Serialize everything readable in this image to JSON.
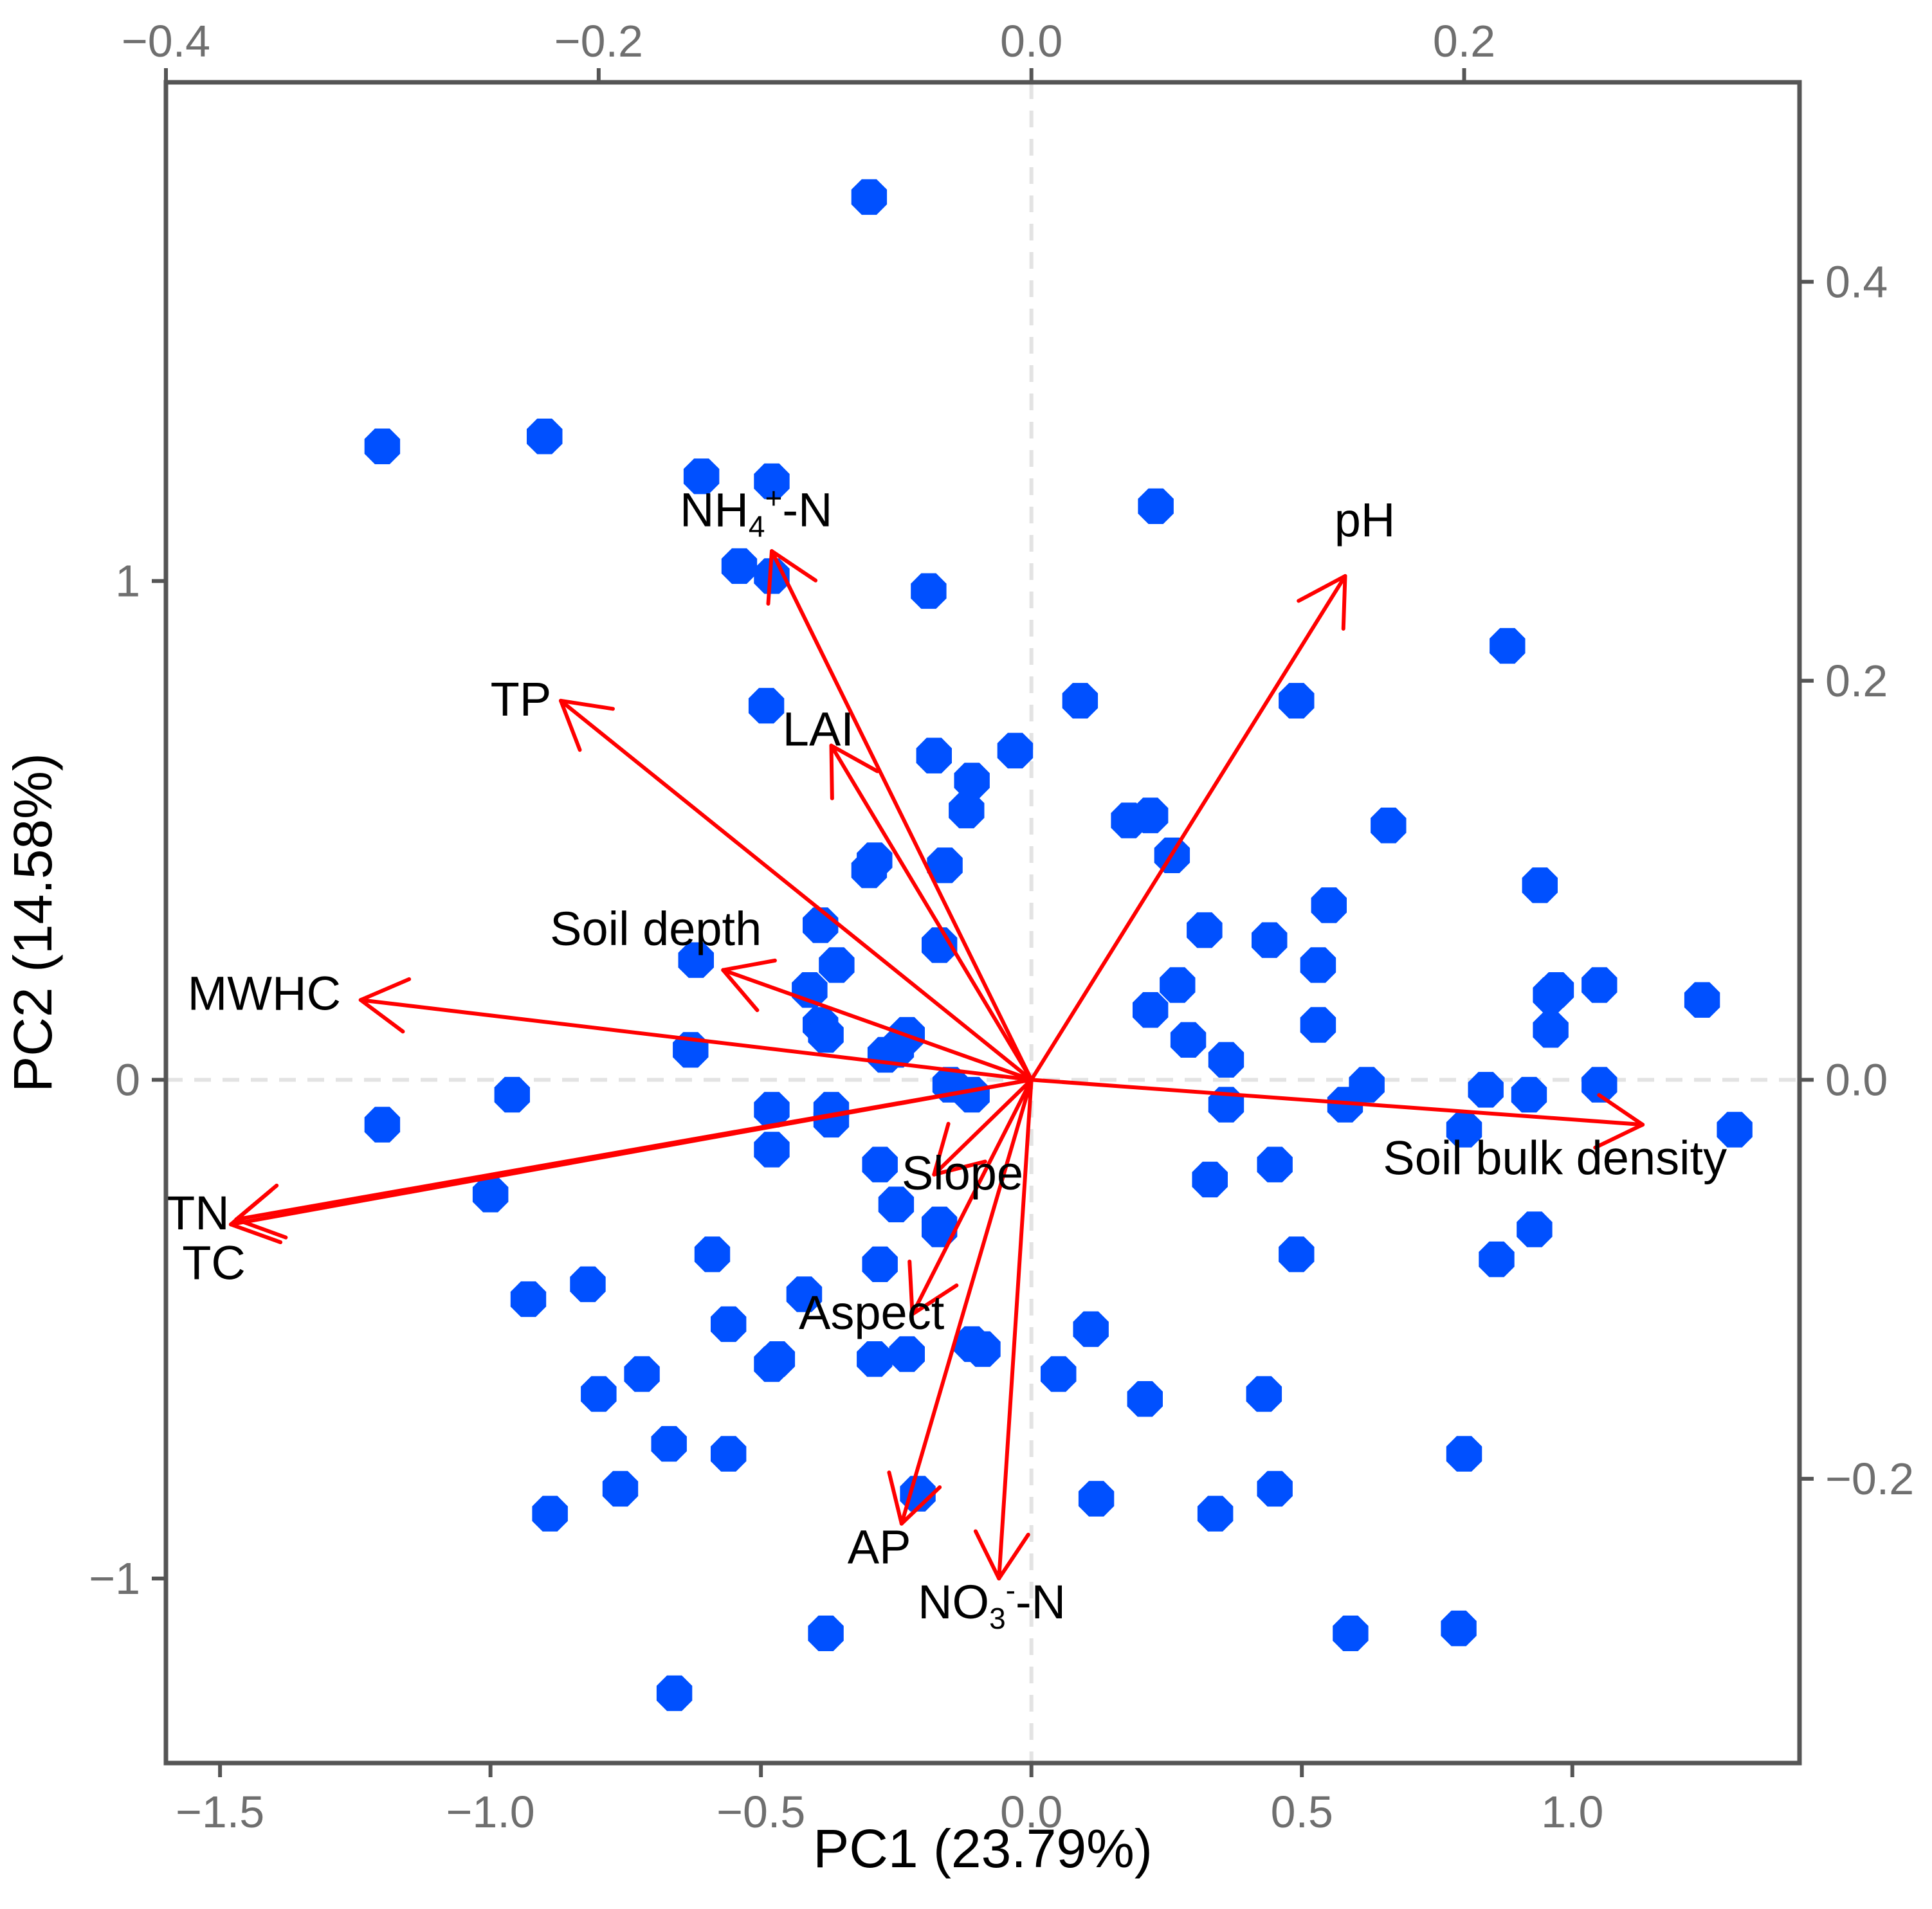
{
  "chart_data": {
    "type": "scatter",
    "subtype": "pca_biplot",
    "title": "",
    "xlabel": "PC1 (23.79%)",
    "ylabel": "PC2 (14.58%)",
    "xlim": [
      -1.6,
      1.42
    ],
    "ylim": [
      -1.37,
      2.0
    ],
    "x_ticks": [
      -1.5,
      -1.0,
      -0.5,
      0.0,
      0.5,
      1.0
    ],
    "x_tick_labels": [
      "−1.5",
      "−1.0",
      "−0.5",
      "0.0",
      "0.5",
      "1.0"
    ],
    "y_ticks": [
      -1,
      0,
      1
    ],
    "y_tick_labels": [
      "−1",
      "0",
      "1"
    ],
    "loading_axis": {
      "scale": 0.25,
      "top_ticks": [
        -0.4,
        -0.2,
        0.0,
        0.2
      ],
      "top_tick_labels": [
        "−0.4",
        "−0.2",
        "0.0",
        "0.2"
      ],
      "right_ticks": [
        -0.2,
        0.0,
        0.2,
        0.4
      ],
      "right_tick_labels": [
        "−0.2",
        "0.0",
        "0.2",
        "0.4"
      ]
    },
    "grid": false,
    "reference_lines": [
      "x=0",
      "y=0"
    ],
    "colors": {
      "points": "#0050ff",
      "arrows": "#ff0000",
      "frame": "#555555",
      "reference": "#e3e3e3",
      "ticks": "#6f6f6f"
    },
    "points": [
      {
        "x": -0.3,
        "y": 1.77
      },
      {
        "x": -1.2,
        "y": 1.27
      },
      {
        "x": -0.9,
        "y": 1.29
      },
      {
        "x": -0.61,
        "y": 1.21
      },
      {
        "x": -0.48,
        "y": 1.2
      },
      {
        "x": 0.23,
        "y": 1.15
      },
      {
        "x": -0.54,
        "y": 1.03
      },
      {
        "x": -0.48,
        "y": 1.01
      },
      {
        "x": -0.19,
        "y": 0.98
      },
      {
        "x": 0.88,
        "y": 0.87
      },
      {
        "x": -0.49,
        "y": 0.75
      },
      {
        "x": 0.09,
        "y": 0.76
      },
      {
        "x": 0.49,
        "y": 0.76
      },
      {
        "x": -0.18,
        "y": 0.65
      },
      {
        "x": -0.03,
        "y": 0.66
      },
      {
        "x": -0.11,
        "y": 0.6
      },
      {
        "x": -0.12,
        "y": 0.54
      },
      {
        "x": 0.18,
        "y": 0.52
      },
      {
        "x": 0.22,
        "y": 0.53
      },
      {
        "x": 0.66,
        "y": 0.51
      },
      {
        "x": 0.26,
        "y": 0.45
      },
      {
        "x": -0.29,
        "y": 0.44
      },
      {
        "x": -0.3,
        "y": 0.42
      },
      {
        "x": -0.16,
        "y": 0.43
      },
      {
        "x": 0.94,
        "y": 0.39
      },
      {
        "x": 0.55,
        "y": 0.35
      },
      {
        "x": -0.39,
        "y": 0.31
      },
      {
        "x": 0.32,
        "y": 0.3
      },
      {
        "x": 0.44,
        "y": 0.28
      },
      {
        "x": -0.17,
        "y": 0.27
      },
      {
        "x": -0.62,
        "y": 0.24
      },
      {
        "x": -0.36,
        "y": 0.23
      },
      {
        "x": 0.53,
        "y": 0.23
      },
      {
        "x": 0.27,
        "y": 0.19
      },
      {
        "x": 0.97,
        "y": 0.18
      },
      {
        "x": 0.96,
        "y": 0.17
      },
      {
        "x": 1.05,
        "y": 0.19
      },
      {
        "x": 1.24,
        "y": 0.16
      },
      {
        "x": -0.41,
        "y": 0.18
      },
      {
        "x": 0.22,
        "y": 0.14
      },
      {
        "x": -0.39,
        "y": 0.11
      },
      {
        "x": -0.38,
        "y": 0.09
      },
      {
        "x": 0.53,
        "y": 0.11
      },
      {
        "x": 0.96,
        "y": 0.1
      },
      {
        "x": -0.23,
        "y": 0.09
      },
      {
        "x": 0.29,
        "y": 0.08
      },
      {
        "x": -0.63,
        "y": 0.06
      },
      {
        "x": -0.27,
        "y": 0.05
      },
      {
        "x": -0.25,
        "y": 0.06
      },
      {
        "x": 0.36,
        "y": 0.04
      },
      {
        "x": -0.96,
        "y": -0.03
      },
      {
        "x": -0.15,
        "y": -0.01
      },
      {
        "x": -0.11,
        "y": -0.03
      },
      {
        "x": 0.62,
        "y": -0.01
      },
      {
        "x": 0.58,
        "y": -0.05
      },
      {
        "x": 0.84,
        "y": -0.02
      },
      {
        "x": 0.92,
        "y": -0.03
      },
      {
        "x": 1.05,
        "y": -0.01
      },
      {
        "x": 0.36,
        "y": -0.05
      },
      {
        "x": -1.2,
        "y": -0.09
      },
      {
        "x": -0.48,
        "y": -0.06
      },
      {
        "x": -0.37,
        "y": -0.06
      },
      {
        "x": -0.37,
        "y": -0.08
      },
      {
        "x": 0.8,
        "y": -0.1
      },
      {
        "x": 1.3,
        "y": -0.1
      },
      {
        "x": -0.48,
        "y": -0.14
      },
      {
        "x": -0.28,
        "y": -0.17
      },
      {
        "x": 0.45,
        "y": -0.17
      },
      {
        "x": 0.33,
        "y": -0.2
      },
      {
        "x": -1.0,
        "y": -0.23
      },
      {
        "x": -0.25,
        "y": -0.25
      },
      {
        "x": -0.17,
        "y": -0.29
      },
      {
        "x": -0.17,
        "y": -0.3
      },
      {
        "x": 0.93,
        "y": -0.3
      },
      {
        "x": -0.59,
        "y": -0.35
      },
      {
        "x": 0.49,
        "y": -0.35
      },
      {
        "x": 0.86,
        "y": -0.36
      },
      {
        "x": -0.28,
        "y": -0.37
      },
      {
        "x": -0.82,
        "y": -0.41
      },
      {
        "x": -0.93,
        "y": -0.44
      },
      {
        "x": -0.42,
        "y": -0.43
      },
      {
        "x": -0.56,
        "y": -0.49
      },
      {
        "x": 0.11,
        "y": -0.5
      },
      {
        "x": -0.11,
        "y": -0.53
      },
      {
        "x": -0.09,
        "y": -0.54
      },
      {
        "x": -0.29,
        "y": -0.56
      },
      {
        "x": -0.23,
        "y": -0.55
      },
      {
        "x": -0.48,
        "y": -0.57
      },
      {
        "x": -0.47,
        "y": -0.56
      },
      {
        "x": 0.05,
        "y": -0.59
      },
      {
        "x": -0.72,
        "y": -0.59
      },
      {
        "x": -0.8,
        "y": -0.63
      },
      {
        "x": 0.21,
        "y": -0.64
      },
      {
        "x": 0.43,
        "y": -0.63
      },
      {
        "x": -0.67,
        "y": -0.73
      },
      {
        "x": -0.56,
        "y": -0.75
      },
      {
        "x": 0.8,
        "y": -0.75
      },
      {
        "x": -0.76,
        "y": -0.82
      },
      {
        "x": 0.45,
        "y": -0.82
      },
      {
        "x": -0.21,
        "y": -0.83
      },
      {
        "x": 0.12,
        "y": -0.84
      },
      {
        "x": -0.89,
        "y": -0.87
      },
      {
        "x": 0.34,
        "y": -0.87
      },
      {
        "x": -0.38,
        "y": -1.11
      },
      {
        "x": 0.59,
        "y": -1.11
      },
      {
        "x": 0.79,
        "y": -1.1
      },
      {
        "x": -0.66,
        "y": -1.23
      }
    ],
    "arrows": [
      {
        "label": "NH4+-N",
        "label_main": "NH",
        "label_sub": "4",
        "label_sup": "+",
        "label_tail": "-N",
        "x": -0.48,
        "y": 1.06,
        "label_x": -0.65,
        "label_y": 1.11
      },
      {
        "label": "pH",
        "x": 0.58,
        "y": 1.01,
        "label_x": 0.56,
        "label_y": 1.09
      },
      {
        "label": "TP",
        "x": -0.87,
        "y": 0.76,
        "label_x": -1.0,
        "label_y": 0.73
      },
      {
        "label": "LAI",
        "x": -0.37,
        "y": 0.67,
        "label_x": -0.46,
        "label_y": 0.67
      },
      {
        "label": "Soil depth",
        "x": -0.57,
        "y": 0.22,
        "label_x": -0.89,
        "label_y": 0.27
      },
      {
        "label": "MWHC",
        "x": -1.24,
        "y": 0.16,
        "label_x": -1.56,
        "label_y": 0.14
      },
      {
        "label": "Soil bulk density",
        "x": 1.13,
        "y": -0.09,
        "label_x": 0.65,
        "label_y": -0.19
      },
      {
        "label": "TN",
        "x": -1.47,
        "y": -0.28,
        "label_x": -1.6,
        "label_y": -0.3
      },
      {
        "label": "TC",
        "x": -1.48,
        "y": -0.29,
        "label_x": -1.57,
        "label_y": -0.4
      },
      {
        "label": "Slope",
        "x": -0.18,
        "y": -0.19,
        "label_x": -0.24,
        "label_y": -0.22
      },
      {
        "label": "Aspect",
        "x": -0.22,
        "y": -0.47,
        "label_x": -0.43,
        "label_y": -0.5
      },
      {
        "label": "AP",
        "x": -0.24,
        "y": -0.89,
        "label_x": -0.34,
        "label_y": -0.97
      },
      {
        "label": "NO3--N",
        "label_main": "NO",
        "label_sub": "3",
        "label_sup": "-",
        "label_tail": "-N",
        "x": -0.06,
        "y": -1.0,
        "label_x": -0.21,
        "label_y": -1.08
      }
    ]
  }
}
